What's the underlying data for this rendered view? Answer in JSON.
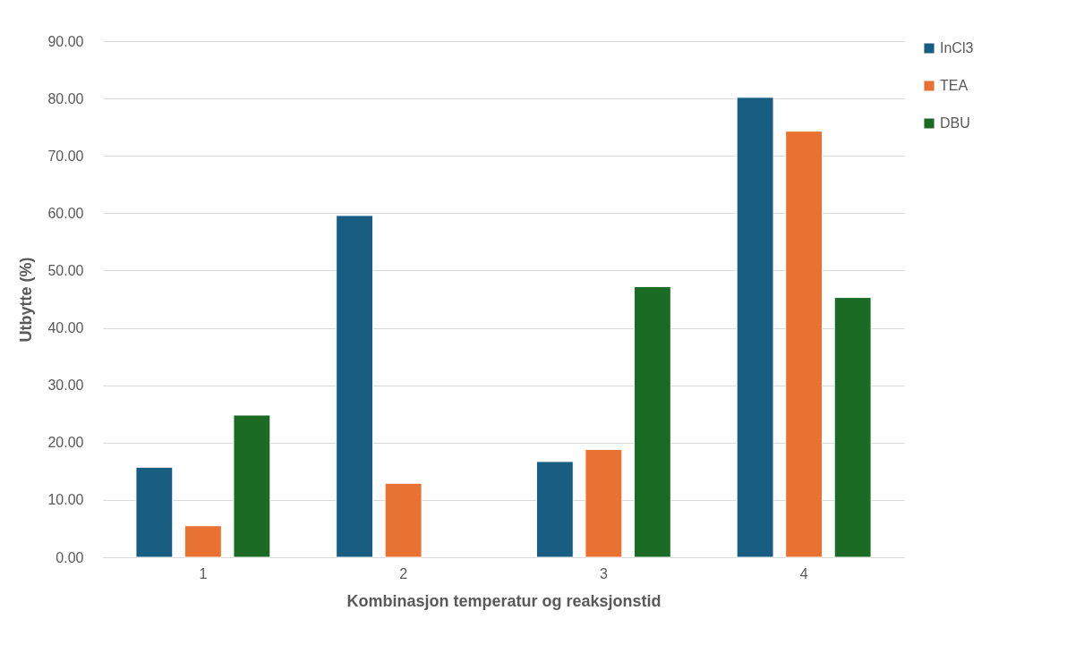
{
  "chart_data": {
    "type": "bar",
    "xlabel": "Kombinasjon temperatur og reaksjonstid",
    "ylabel": "Utbytte (%)",
    "categories": [
      "1",
      "2",
      "3",
      "4"
    ],
    "series": [
      {
        "name": "InCl3",
        "color": "#175e82",
        "values": [
          15.7,
          59.6,
          16.7,
          80.2
        ]
      },
      {
        "name": "TEA",
        "color": "#e97132",
        "values": [
          5.5,
          12.9,
          18.8,
          74.3
        ]
      },
      {
        "name": "DBU",
        "color": "#1b6b24",
        "values": [
          24.8,
          null,
          47.2,
          45.3
        ]
      }
    ],
    "ylim": [
      0,
      90
    ],
    "yticks": [
      {
        "value": 0,
        "label": "0.00"
      },
      {
        "value": 10,
        "label": "10.00"
      },
      {
        "value": 20,
        "label": "20.00"
      },
      {
        "value": 30,
        "label": "30.00"
      },
      {
        "value": 40,
        "label": "40.00"
      },
      {
        "value": 50,
        "label": "50.00"
      },
      {
        "value": 60,
        "label": "60.00"
      },
      {
        "value": 70,
        "label": "70.00"
      },
      {
        "value": 80,
        "label": "80.00"
      },
      {
        "value": 90,
        "label": "90.00"
      }
    ],
    "grid": "y",
    "legend": "right"
  }
}
